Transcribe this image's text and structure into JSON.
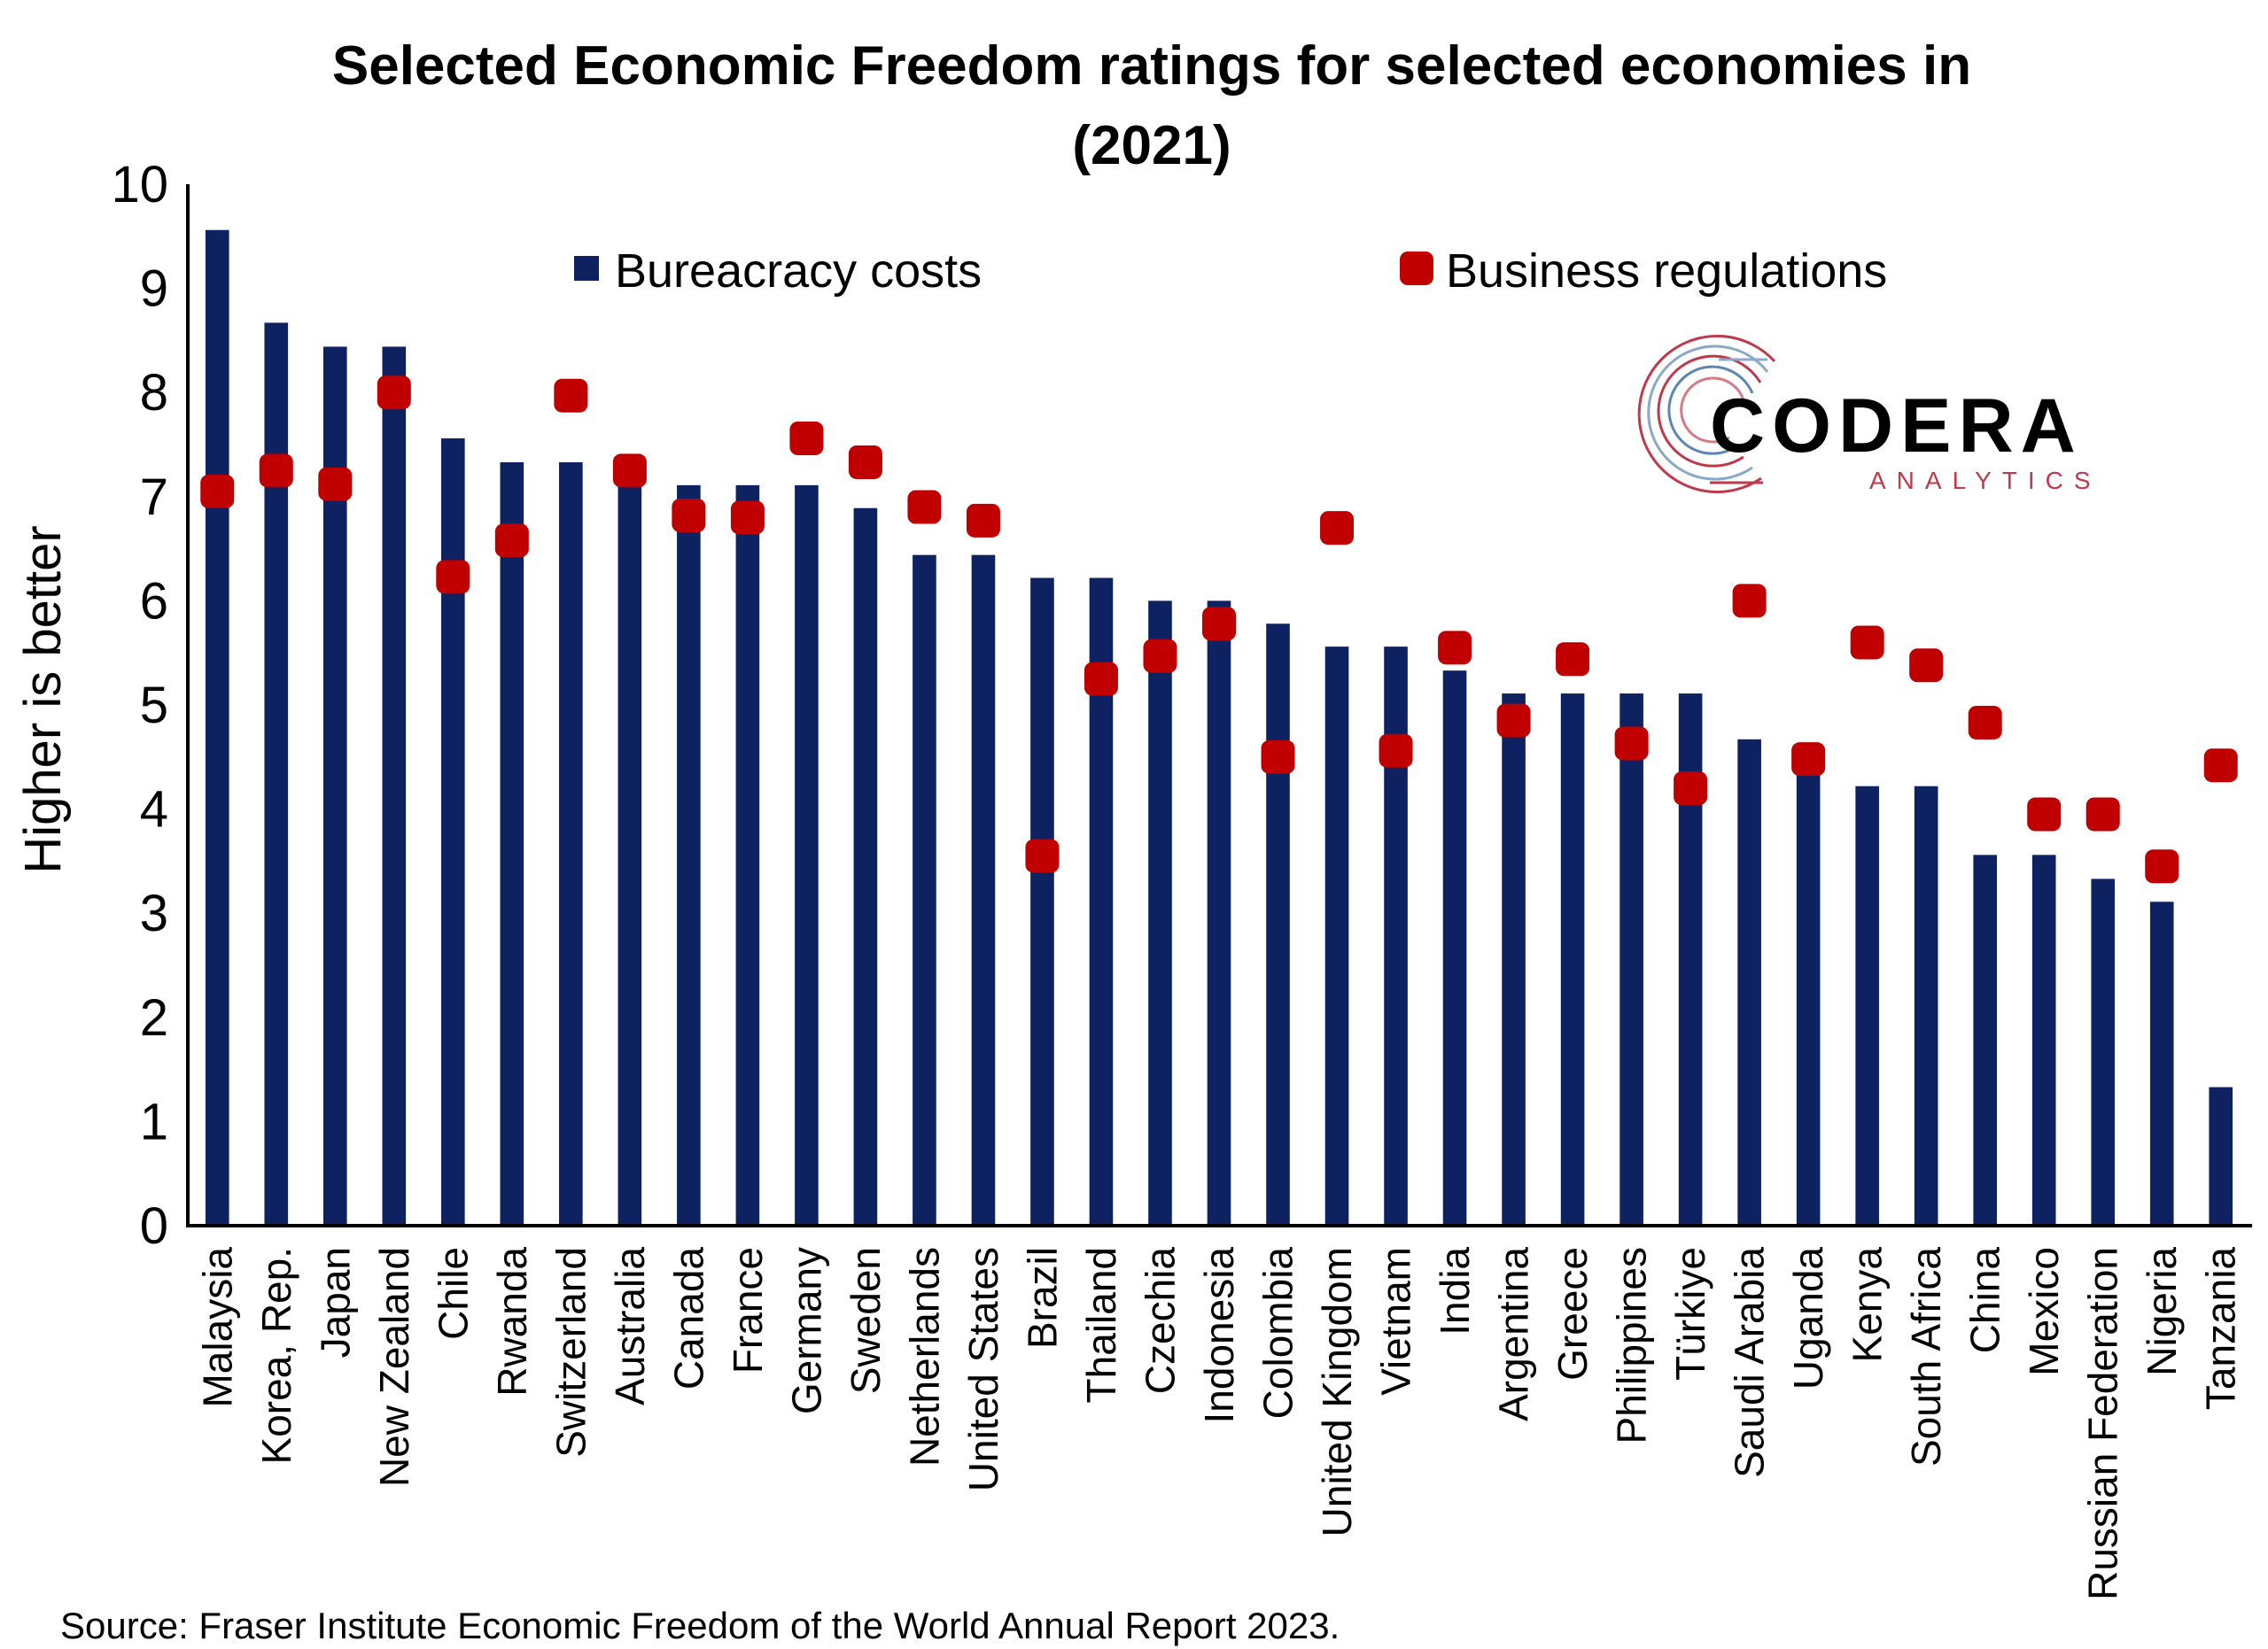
{
  "chart_data": {
    "type": "bar",
    "title_line1": "Selected Economic Freedom ratings for selected economies in",
    "title_line2": "(2021)",
    "ylabel": "Higher is better",
    "xlabel": "",
    "ylim": [
      0,
      10
    ],
    "yticks": [
      "0",
      "1",
      "2",
      "3",
      "4",
      "5",
      "6",
      "7",
      "8",
      "9",
      "10"
    ],
    "grid": false,
    "legend_position": "top",
    "categories": [
      "Malaysia",
      "Korea, Rep.",
      "Japan",
      "New Zealand",
      "Chile",
      "Rwanda",
      "Switzerland",
      "Australia",
      "Canada",
      "France",
      "Germany",
      "Sweden",
      "Netherlands",
      "United States",
      "Brazil",
      "Thailand",
      "Czechia",
      "Indonesia",
      "Colombia",
      "United Kingdom",
      "Vietnam",
      "India",
      "Argentina",
      "Greece",
      "Philippines",
      "Türkiye",
      "Saudi Arabia",
      "Uganda",
      "Kenya",
      "South Africa",
      "China",
      "Mexico",
      "Russian Federation",
      "Nigeria",
      "Tanzania"
    ],
    "series": [
      {
        "name": "Bureacracy costs",
        "kind": "bar",
        "color": "#0e2160",
        "values": [
          9.56,
          8.67,
          8.44,
          8.44,
          7.56,
          7.33,
          7.33,
          7.33,
          7.11,
          7.11,
          7.11,
          6.89,
          6.44,
          6.44,
          6.22,
          6.22,
          6.0,
          6.0,
          5.78,
          5.56,
          5.56,
          5.33,
          5.11,
          5.11,
          5.11,
          5.11,
          4.67,
          4.44,
          4.22,
          4.22,
          3.56,
          3.56,
          3.33,
          3.11,
          1.33
        ]
      },
      {
        "name": "Business regulations",
        "kind": "marker",
        "color": "#c00000",
        "values": [
          7.05,
          7.25,
          7.12,
          8.0,
          6.23,
          6.58,
          7.97,
          7.25,
          6.82,
          6.8,
          7.56,
          7.33,
          6.9,
          6.77,
          3.55,
          5.25,
          5.47,
          5.78,
          4.5,
          6.7,
          4.56,
          5.55,
          4.85,
          5.44,
          4.63,
          4.2,
          6.0,
          4.48,
          5.6,
          5.38,
          4.83,
          3.95,
          3.95,
          3.45,
          4.42
        ]
      }
    ],
    "source": "Source: Fraser Institute Economic Freedom of the World Annual Report 2023."
  },
  "logo": {
    "name": "CODERA",
    "sub": "ANALYTICS",
    "color_main": "#000000",
    "color_sub": "#c0394b"
  }
}
